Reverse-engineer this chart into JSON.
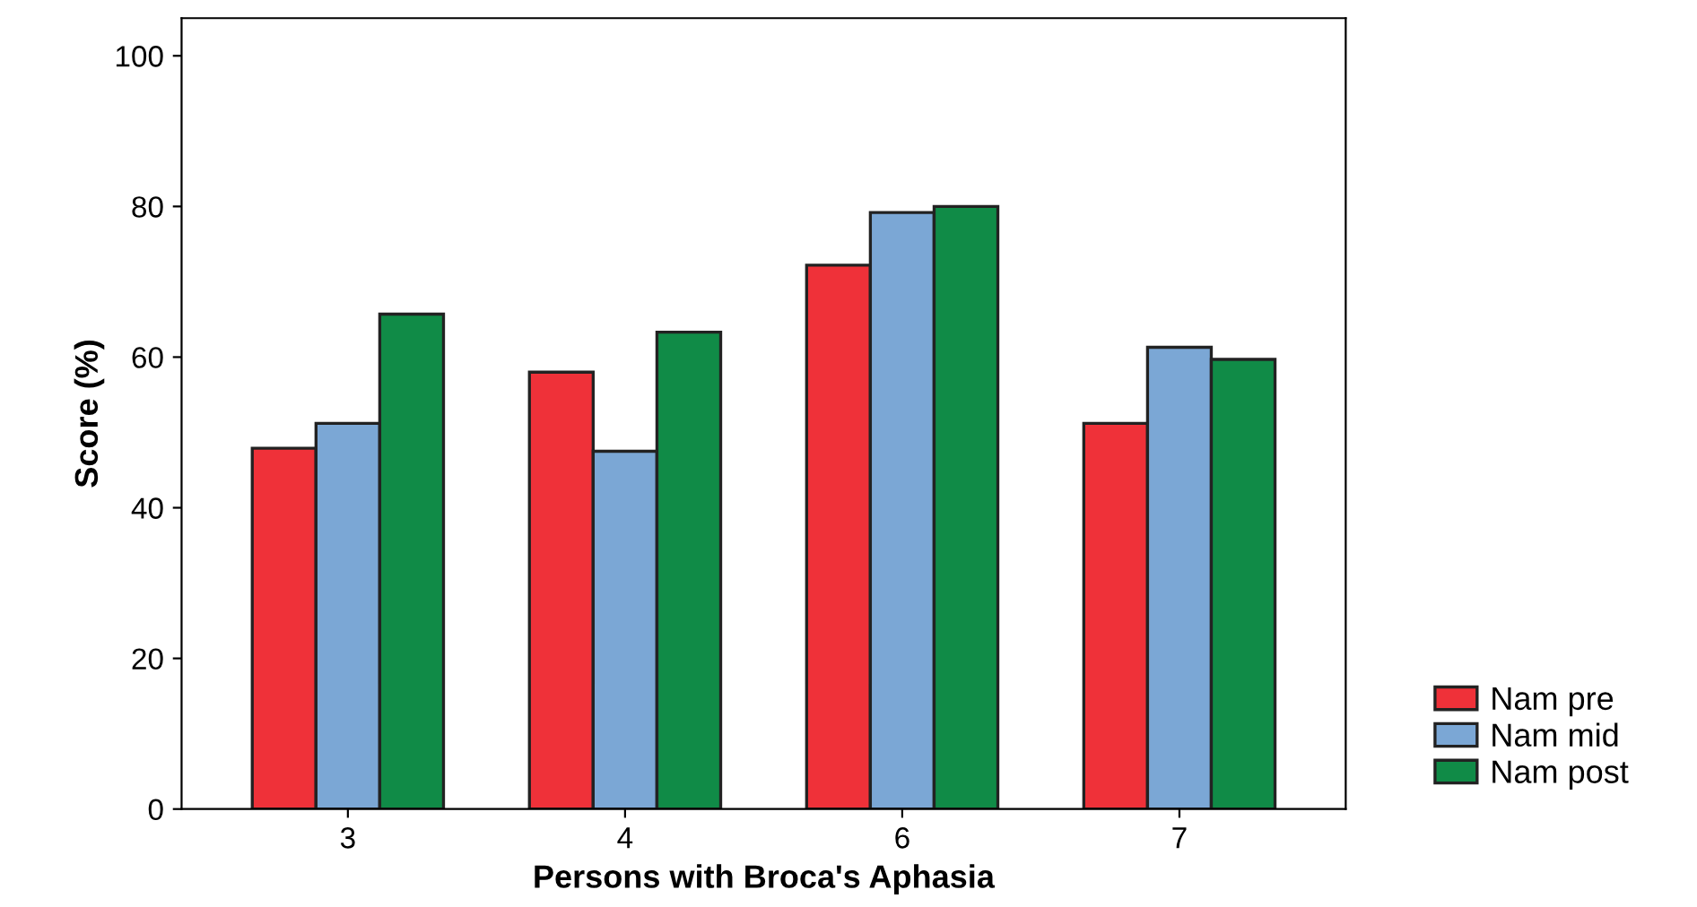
{
  "chart_data": {
    "type": "bar",
    "xlabel": "Persons with Broca's Aphasia",
    "ylabel": "Score (%)",
    "categories": [
      "3",
      "4",
      "6",
      "7"
    ],
    "series": [
      {
        "name": "Nam pre",
        "color": "#ef3139",
        "values": [
          47.9,
          58.0,
          72.2,
          51.2
        ]
      },
      {
        "name": "Nam mid",
        "color": "#7ba7d5",
        "values": [
          51.2,
          47.5,
          79.2,
          61.3
        ]
      },
      {
        "name": "Nam post",
        "color": "#108b47",
        "values": [
          65.7,
          63.3,
          80.0,
          59.7
        ]
      }
    ],
    "ylim": [
      0,
      105
    ],
    "yticks": [
      0,
      20,
      40,
      60,
      80,
      100
    ],
    "grid": false,
    "legend": "bottom right"
  }
}
